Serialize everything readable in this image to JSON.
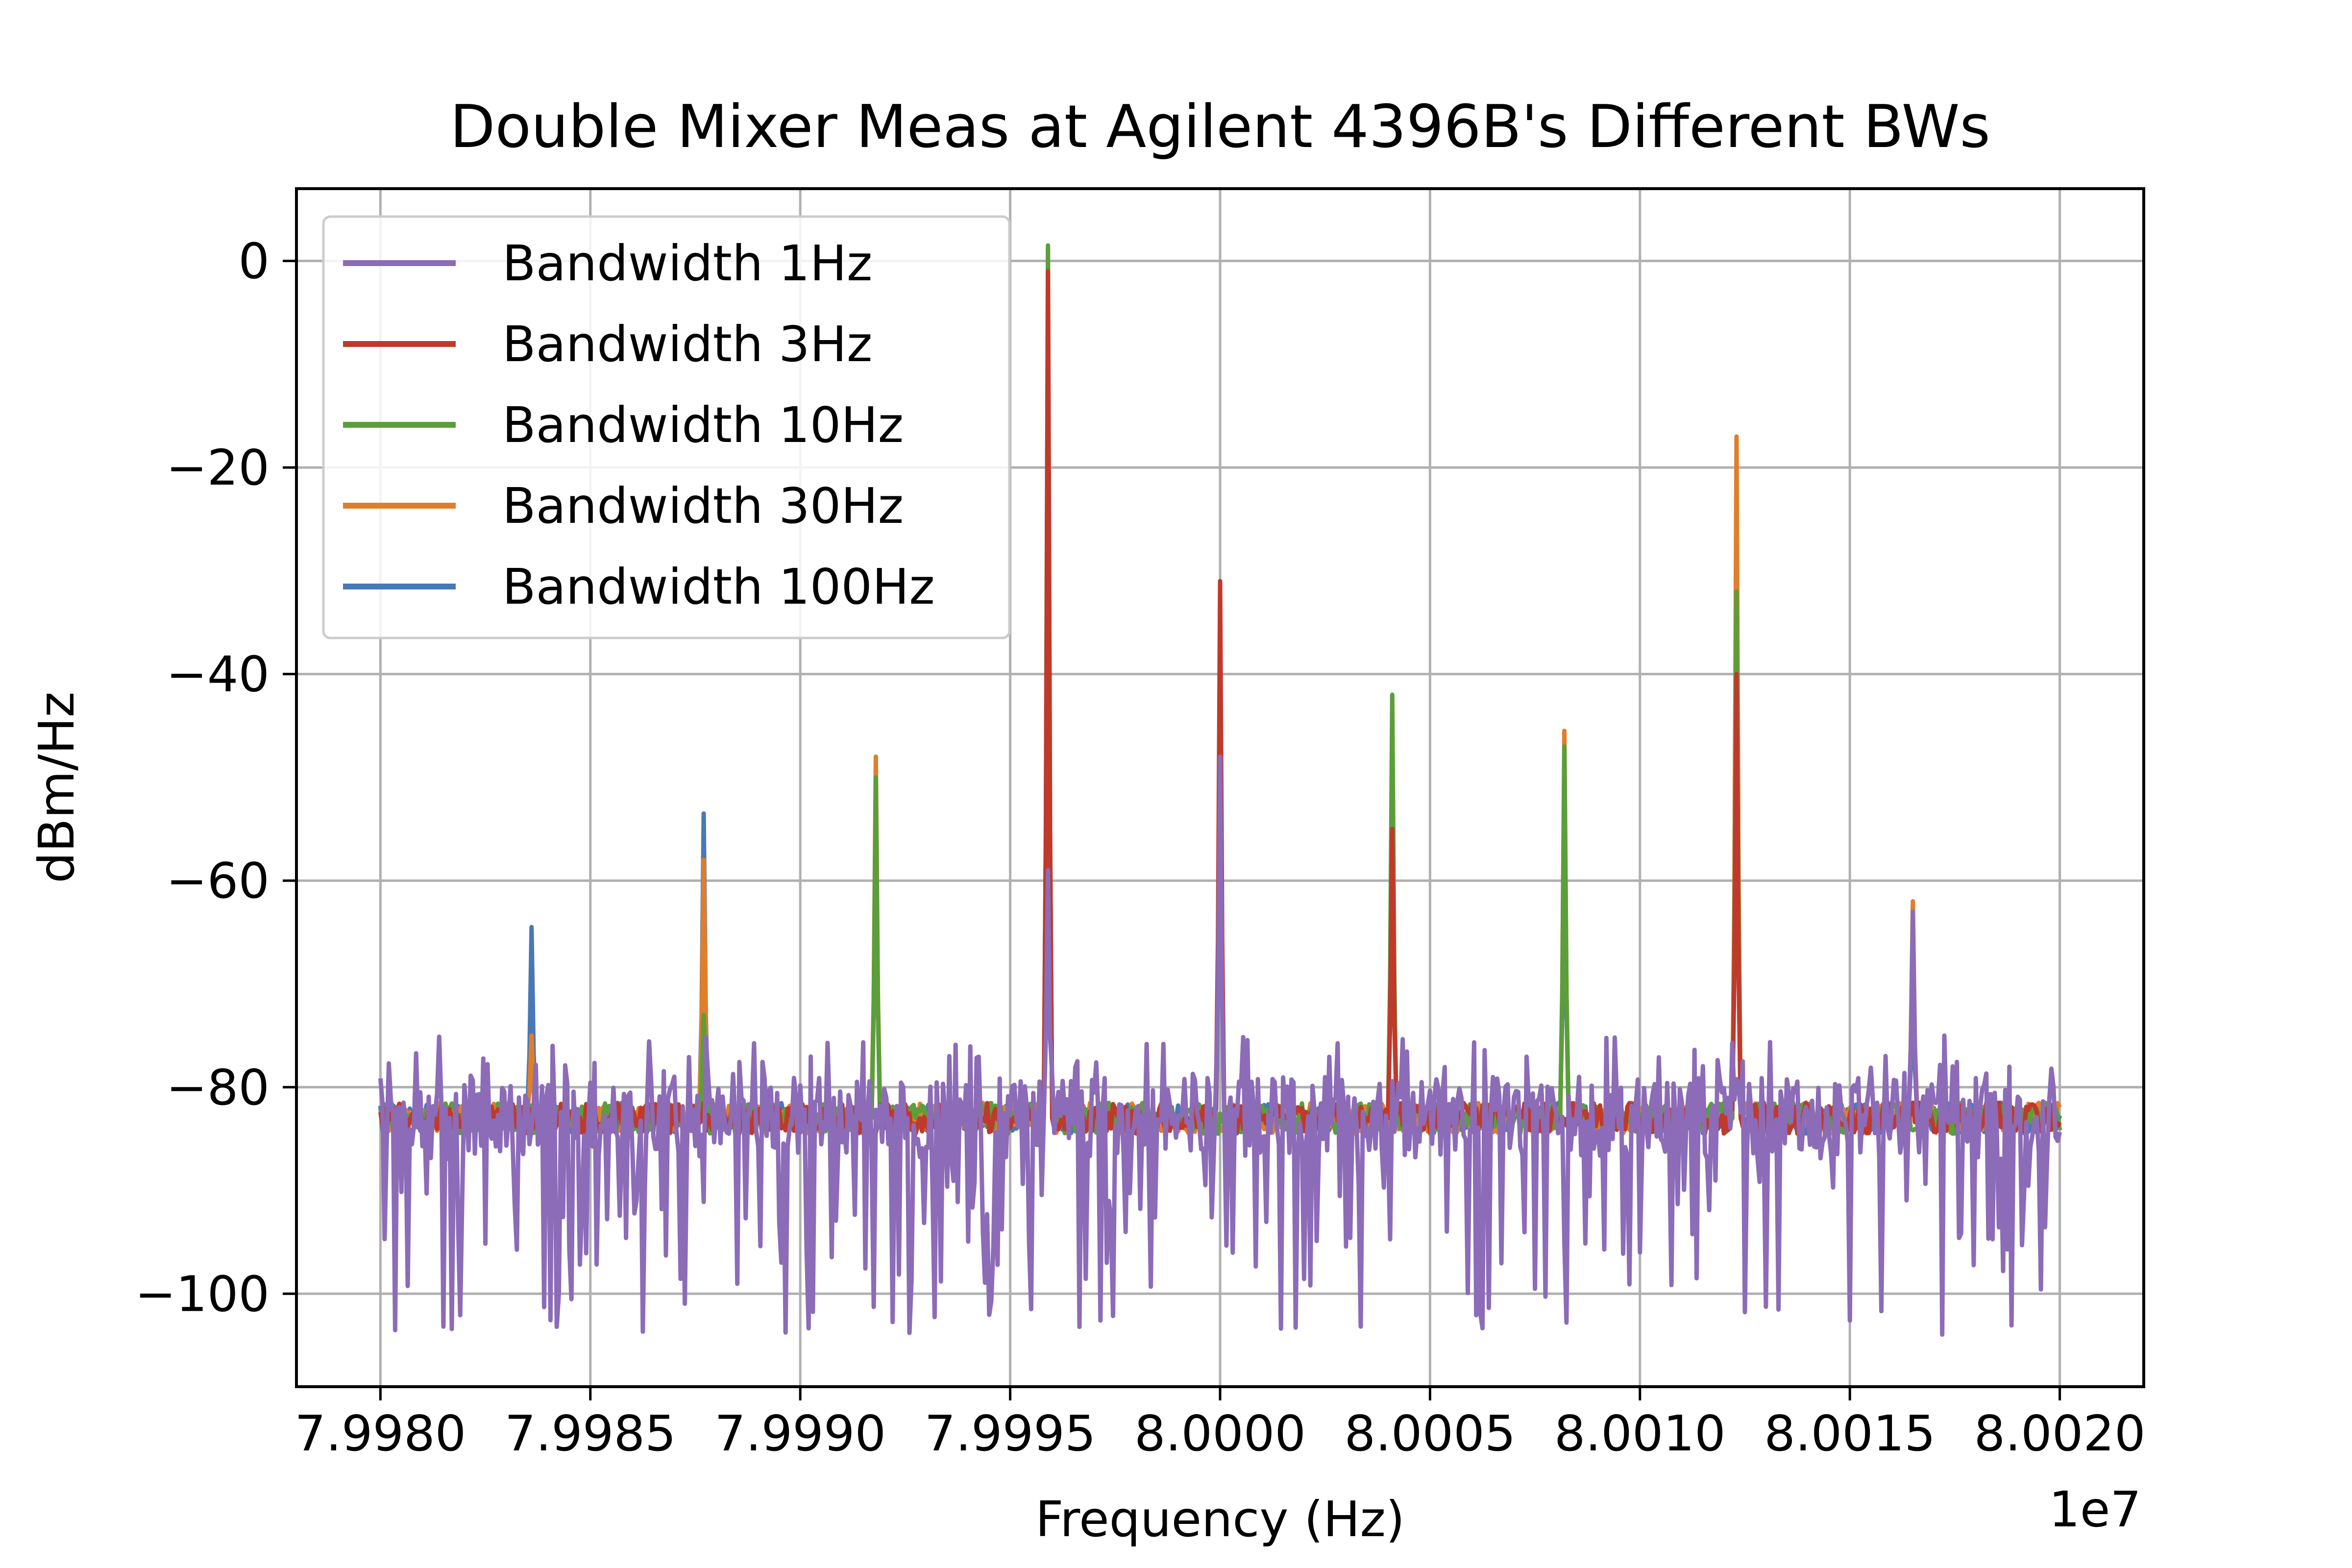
{
  "chart_data": {
    "type": "line",
    "title": "Double Mixer Meas at Agilent 4396B's Different BWs",
    "xlabel": "Frequency (Hz)",
    "ylabel": "dBm/Hz",
    "x_offset_label": "1e7",
    "xlim": [
      7.9978,
      8.0022
    ],
    "ylim": [
      -109,
      7
    ],
    "x_ticks": [
      "7.9980",
      "7.9985",
      "7.9990",
      "7.9995",
      "8.0000",
      "8.0005",
      "8.0010",
      "8.0015",
      "8.0020"
    ],
    "x_tick_values": [
      7.998,
      7.9985,
      7.999,
      7.9995,
      8.0,
      8.0005,
      8.001,
      8.0015,
      8.002
    ],
    "y_ticks": [
      "0",
      "−20",
      "−40",
      "−60",
      "−80",
      "−100"
    ],
    "y_tick_values": [
      0,
      -20,
      -40,
      -60,
      -80,
      -100
    ],
    "grid": true,
    "legend_position": "top-left",
    "noise_floor": -83,
    "series": [
      {
        "name": "Bandwidth 1Hz",
        "color": "#8c6bb8",
        "noise_amplitude": 10,
        "peaks": [
          [
            7.99959,
            -59
          ],
          [
            8.0,
            -48
          ],
          [
            8.00165,
            -63
          ]
        ]
      },
      {
        "name": "Bandwidth 3Hz",
        "color": "#c0392b",
        "noise_amplitude": 1.5,
        "peaks": [
          [
            7.99959,
            -1
          ],
          [
            8.0,
            -31
          ],
          [
            8.00041,
            -55
          ],
          [
            8.00123,
            -40
          ]
        ]
      },
      {
        "name": "Bandwidth 10Hz",
        "color": "#5b9e3a",
        "noise_amplitude": 1.5,
        "peaks": [
          [
            7.99877,
            -73
          ],
          [
            7.99918,
            -50
          ],
          [
            7.99959,
            1.5
          ],
          [
            8.00041,
            -42
          ],
          [
            8.00082,
            -47
          ],
          [
            8.00123,
            -32
          ]
        ]
      },
      {
        "name": "Bandwidth 30Hz",
        "color": "#e07e2a",
        "noise_amplitude": 1.5,
        "peaks": [
          [
            7.99836,
            -75
          ],
          [
            7.99877,
            -58
          ],
          [
            7.99918,
            -48
          ],
          [
            7.99959,
            -3
          ],
          [
            8.00082,
            -45.5
          ],
          [
            8.00123,
            -17
          ],
          [
            8.00165,
            -62
          ]
        ]
      },
      {
        "name": "Bandwidth 100Hz",
        "color": "#4a78b5",
        "noise_amplitude": 1.5,
        "peaks": [
          [
            7.99836,
            -64.5
          ],
          [
            7.99877,
            -53.5
          ],
          [
            7.99918,
            -51
          ],
          [
            7.99959,
            -6
          ],
          [
            8.0,
            -46
          ],
          [
            8.00041,
            -51
          ],
          [
            8.00082,
            -52
          ],
          [
            8.00123,
            -23
          ],
          [
            8.00165,
            -68
          ]
        ]
      }
    ]
  }
}
